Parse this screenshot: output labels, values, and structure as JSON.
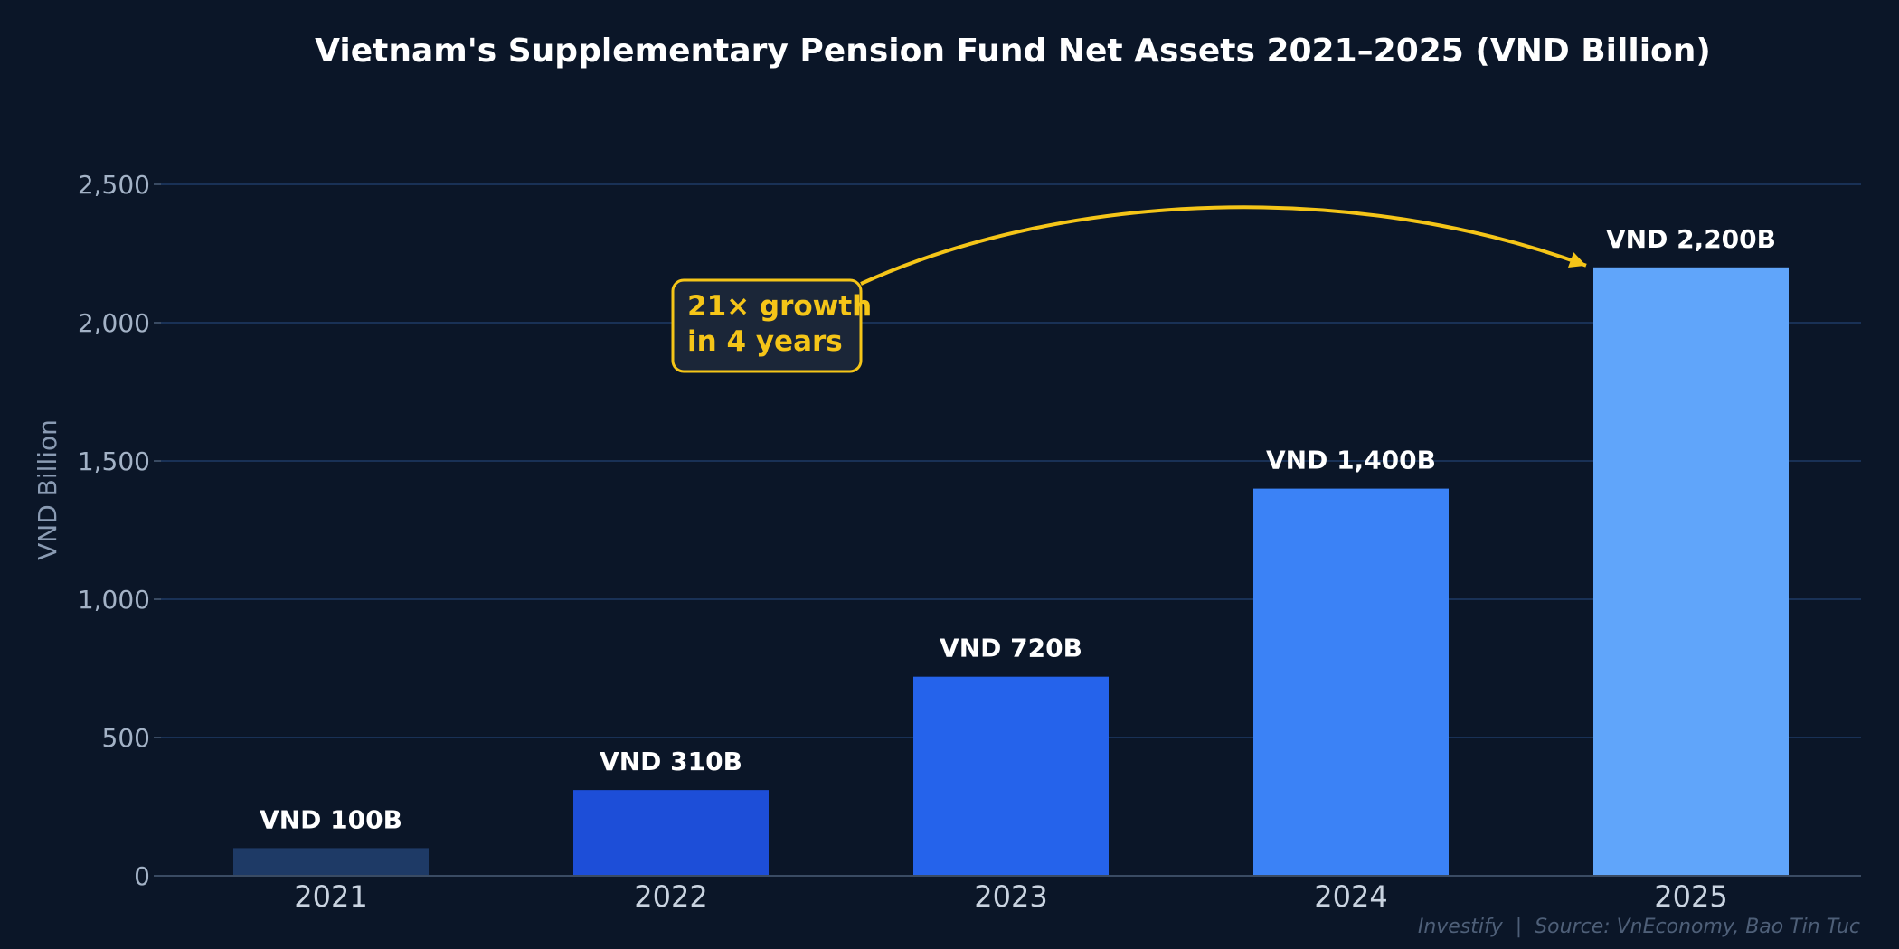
{
  "chart_data": {
    "type": "bar",
    "title": "Vietnam's Supplementary Pension Fund Net Assets 2021–2025 (VND Billion)",
    "xlabel": "",
    "ylabel": "VND Billion",
    "categories": [
      "2021",
      "2022",
      "2023",
      "2024",
      "2025"
    ],
    "values": [
      100,
      310,
      720,
      1400,
      2200
    ],
    "data_labels": [
      "VND 100B",
      "VND 310B",
      "VND 720B",
      "VND 1,400B",
      "VND 2,200B"
    ],
    "bar_colors": [
      "#1e3a66",
      "#1d4ed8",
      "#2563eb",
      "#3b82f6",
      "#60a5fa"
    ],
    "ylim": [
      0,
      2500
    ],
    "yticks": [
      0,
      500,
      1000,
      1500,
      2000,
      2500
    ],
    "ytick_labels": [
      "0",
      "500",
      "1,000",
      "1,500",
      "2,000",
      "2,500"
    ],
    "grid": true,
    "annotation": {
      "lines": [
        "21× growth",
        "in 4 years"
      ],
      "color": "#f5c518",
      "arrow_to": "2025"
    },
    "footer": "Investify  |  Source: VnEconomy, Bao Tin Tuc"
  }
}
